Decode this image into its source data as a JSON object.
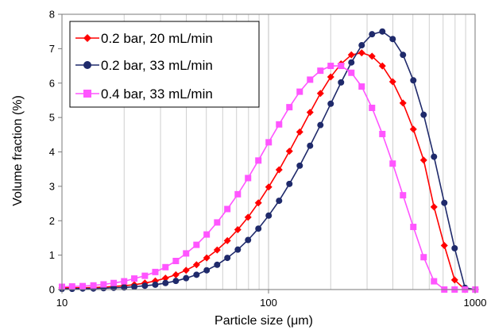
{
  "chart_data": {
    "type": "line",
    "title": "",
    "xlabel": "Particle size (μm)",
    "ylabel": "Volume fraction (%)",
    "xscale": "log",
    "xlim": [
      10,
      1000
    ],
    "ylim": [
      0,
      8
    ],
    "x_tick_labels": [
      "10",
      "100",
      "1000"
    ],
    "y_tick_labels": [
      "0",
      "1",
      "2",
      "3",
      "4",
      "5",
      "6",
      "7",
      "8"
    ],
    "grid": "vertical minor gridlines",
    "legend_position": "top-left",
    "x": [
      10,
      11.2,
      12.6,
      14.2,
      15.9,
      17.8,
      20,
      22.4,
      25.2,
      28.3,
      31.7,
      35.6,
      39.9,
      44.8,
      50.2,
      56.4,
      63.2,
      71,
      79.6,
      89.3,
      100.2,
      112.5,
      126.2,
      141.6,
      158.9,
      178.3,
      200,
      224.4,
      251.8,
      282.5,
      317,
      355.7,
      399.1,
      447.7,
      502.4,
      563.7,
      632.5,
      709.6,
      796.2,
      893.4,
      1002.4
    ],
    "series": [
      {
        "name": "0.2 bar, 20 mL/min",
        "color": "#ff0000",
        "marker": "diamond",
        "values": [
          0.05,
          0.05,
          0.05,
          0.06,
          0.07,
          0.09,
          0.11,
          0.14,
          0.19,
          0.25,
          0.33,
          0.43,
          0.56,
          0.72,
          0.92,
          1.15,
          1.42,
          1.74,
          2.1,
          2.52,
          2.98,
          3.48,
          4.02,
          4.58,
          5.15,
          5.7,
          6.18,
          6.56,
          6.82,
          6.88,
          6.78,
          6.5,
          6.04,
          5.42,
          4.66,
          3.76,
          2.4,
          1.28,
          0.28,
          0.0,
          0.0
        ]
      },
      {
        "name": "0.2 bar, 33 mL/min",
        "color": "#1f2a6b",
        "marker": "circle",
        "values": [
          0.02,
          0.02,
          0.03,
          0.03,
          0.04,
          0.05,
          0.06,
          0.08,
          0.11,
          0.14,
          0.19,
          0.25,
          0.33,
          0.43,
          0.56,
          0.72,
          0.92,
          1.16,
          1.44,
          1.77,
          2.15,
          2.58,
          3.07,
          3.6,
          4.18,
          4.78,
          5.4,
          6.02,
          6.6,
          7.1,
          7.42,
          7.5,
          7.28,
          6.82,
          6.08,
          5.08,
          3.86,
          2.52,
          1.2,
          0.05,
          0.0
        ]
      },
      {
        "name": "0.4 bar, 33 mL/min",
        "color": "#ff55ff",
        "marker": "square",
        "values": [
          0.08,
          0.09,
          0.1,
          0.12,
          0.15,
          0.19,
          0.24,
          0.32,
          0.4,
          0.51,
          0.65,
          0.83,
          1.05,
          1.3,
          1.6,
          1.95,
          2.34,
          2.77,
          3.24,
          3.75,
          4.28,
          4.8,
          5.3,
          5.75,
          6.1,
          6.36,
          6.5,
          6.5,
          6.3,
          5.9,
          5.28,
          4.52,
          3.66,
          2.74,
          1.82,
          0.94,
          0.24,
          0.0,
          0.0,
          0.0,
          0.0
        ]
      }
    ]
  }
}
